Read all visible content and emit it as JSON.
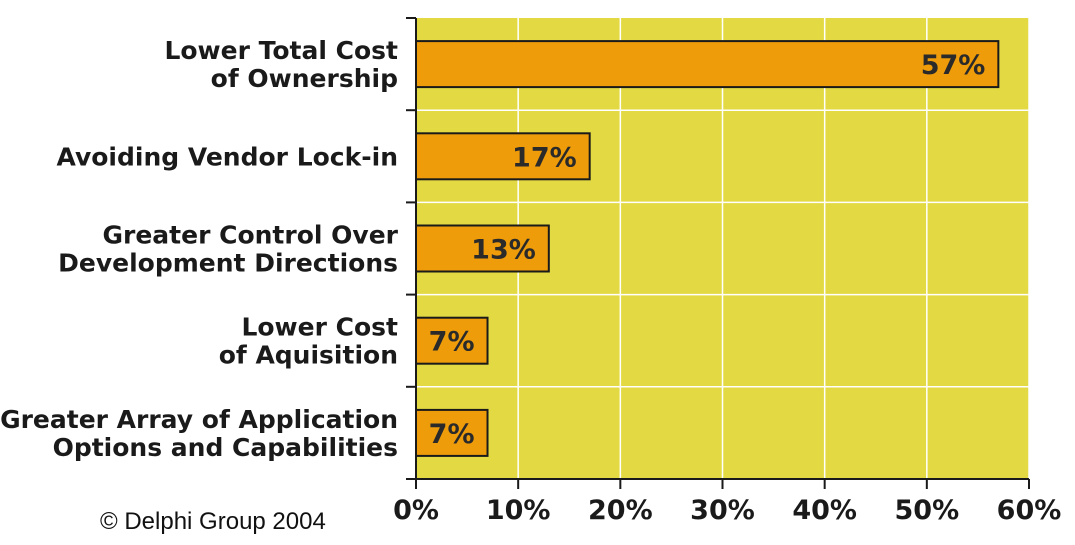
{
  "chart_data": {
    "type": "bar",
    "orientation": "horizontal",
    "categories": [
      [
        "Lower Total Cost",
        "of Ownership"
      ],
      [
        "Avoiding Vendor Lock-in"
      ],
      [
        "Greater Control Over",
        "Development Directions"
      ],
      [
        "Lower Cost",
        "of Aquisition"
      ],
      [
        "Greater Array of Application",
        "Options and Capabilities"
      ]
    ],
    "values": [
      57,
      17,
      13,
      7,
      7
    ],
    "data_labels": [
      "57%",
      "17%",
      "13%",
      "7%",
      "7%"
    ],
    "xlim": [
      0,
      60
    ],
    "xticks": [
      0,
      10,
      20,
      30,
      40,
      50,
      60
    ],
    "xtick_labels": [
      "0%",
      "10%",
      "20%",
      "30%",
      "40%",
      "50%",
      "60%"
    ],
    "grid": true,
    "colors": {
      "plot_background": "#E3DA43",
      "bar_fill": "#EE9C0A",
      "bar_edge": "#1a1a1a",
      "grid": "#ffffff"
    }
  },
  "footer": {
    "copyright": "© Delphi Group 2004"
  }
}
